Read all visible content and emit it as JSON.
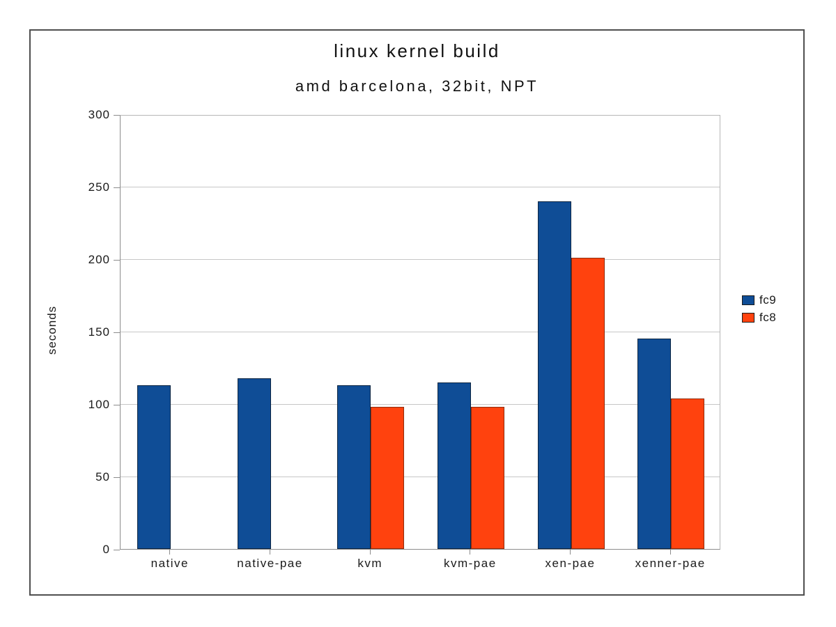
{
  "chart_data": {
    "type": "bar",
    "title": "linux kernel build",
    "subtitle": "amd barcelona, 32bit, NPT",
    "xlabel": "",
    "ylabel": "seconds",
    "categories": [
      "native",
      "native-pae",
      "kvm",
      "kvm-pae",
      "xen-pae",
      "xenner-pae"
    ],
    "series": [
      {
        "name": "fc9",
        "color": "#0f4d96",
        "border_color": "#0c2440",
        "values": [
          113,
          118,
          113,
          115,
          240,
          145
        ]
      },
      {
        "name": "fc8",
        "color": "#ff420e",
        "border_color": "#8f2c0d",
        "values": [
          null,
          null,
          98,
          98,
          201,
          104
        ]
      }
    ],
    "ylim": [
      0,
      300
    ],
    "yticks": [
      0,
      50,
      100,
      150,
      200,
      250,
      300
    ],
    "grid": true,
    "legend_position": "right"
  },
  "colors": {
    "frame_border": "#4f4f4f",
    "gridline": "#c6c6c6",
    "axis": "#8c8c8c",
    "background": "#ffffff",
    "text": "#1a1a1a"
  }
}
